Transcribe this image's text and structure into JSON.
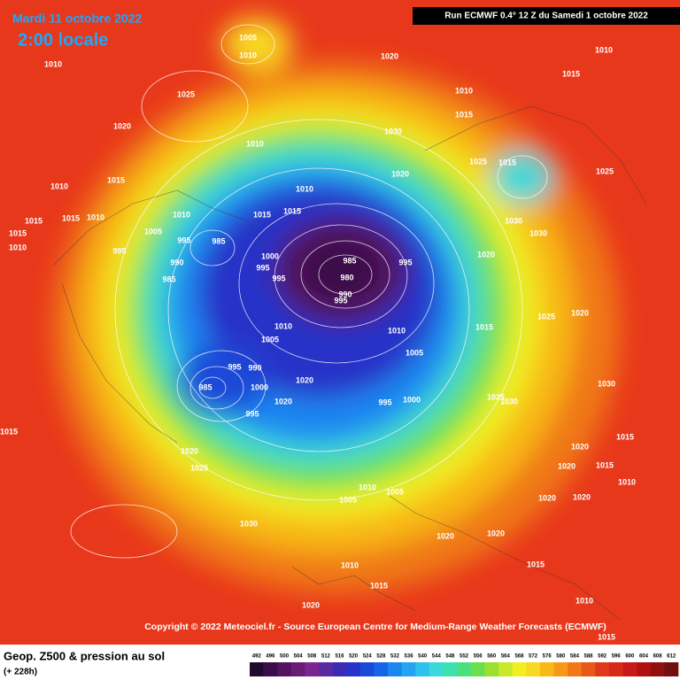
{
  "header": {
    "date": "Mardi 11 octobre 2022",
    "time": "2:00 locale",
    "run": "Run ECMWF 0.4° 12 Z du Samedi 1 octobre 2022"
  },
  "copyright": "Copyright © 2022 Meteociel.fr - Source European Centre for Medium-Range Weather Forecasts (ECMWF)",
  "legend": {
    "title": "Geop. Z500 & pression au sol",
    "lead": "(+ 228h)",
    "levels": [
      492,
      496,
      500,
      504,
      508,
      512,
      516,
      520,
      524,
      528,
      532,
      536,
      540,
      544,
      548,
      552,
      556,
      560,
      564,
      568,
      572,
      576,
      580,
      584,
      588,
      592,
      596,
      600,
      604,
      608,
      612
    ],
    "colors": [
      "#1e0b2e",
      "#3b0b4a",
      "#55125e",
      "#6c1b75",
      "#7a2590",
      "#5a2aa0",
      "#3c2ab4",
      "#2533c8",
      "#1a4ad8",
      "#1466e6",
      "#1a86f0",
      "#24a4f2",
      "#2dc2ee",
      "#3ad8d8",
      "#3fe0b0",
      "#4ae080",
      "#6ae050",
      "#9ae030",
      "#c8e828",
      "#f0f020",
      "#f8d820",
      "#f8b818",
      "#f89818",
      "#f07818",
      "#e85818",
      "#e03818",
      "#d82818",
      "#c81818",
      "#b01010",
      "#901010",
      "#701010"
    ]
  },
  "isobar_labels": [
    "1005",
    "1010",
    "1010",
    "1020",
    "1010",
    "1025",
    "1020",
    "1010",
    "1015",
    "1030",
    "1015",
    "1010",
    "1025",
    "1015",
    "1025",
    "1020",
    "1010",
    "1015",
    "1010",
    "1015",
    "1015",
    "1010",
    "1005",
    "995",
    "985",
    "995",
    "985",
    "980",
    "990",
    "995",
    "1000",
    "995",
    "995",
    "990",
    "985",
    "995",
    "1015",
    "1015",
    "1010",
    "1015",
    "1010",
    "1020",
    "1030",
    "1030",
    "1010",
    "1015",
    "1005",
    "1025",
    "1020",
    "1005",
    "1010",
    "995",
    "990",
    "985",
    "1000",
    "995",
    "1020",
    "1020",
    "995",
    "1000",
    "1030",
    "1025",
    "1030",
    "1015",
    "1015",
    "1020",
    "1025",
    "1020",
    "1015",
    "1020",
    "1010",
    "1010",
    "1005",
    "1005",
    "1020",
    "1020",
    "1030",
    "1020",
    "1020",
    "1010",
    "1015",
    "1015",
    "1020",
    "1010",
    "1015"
  ]
}
